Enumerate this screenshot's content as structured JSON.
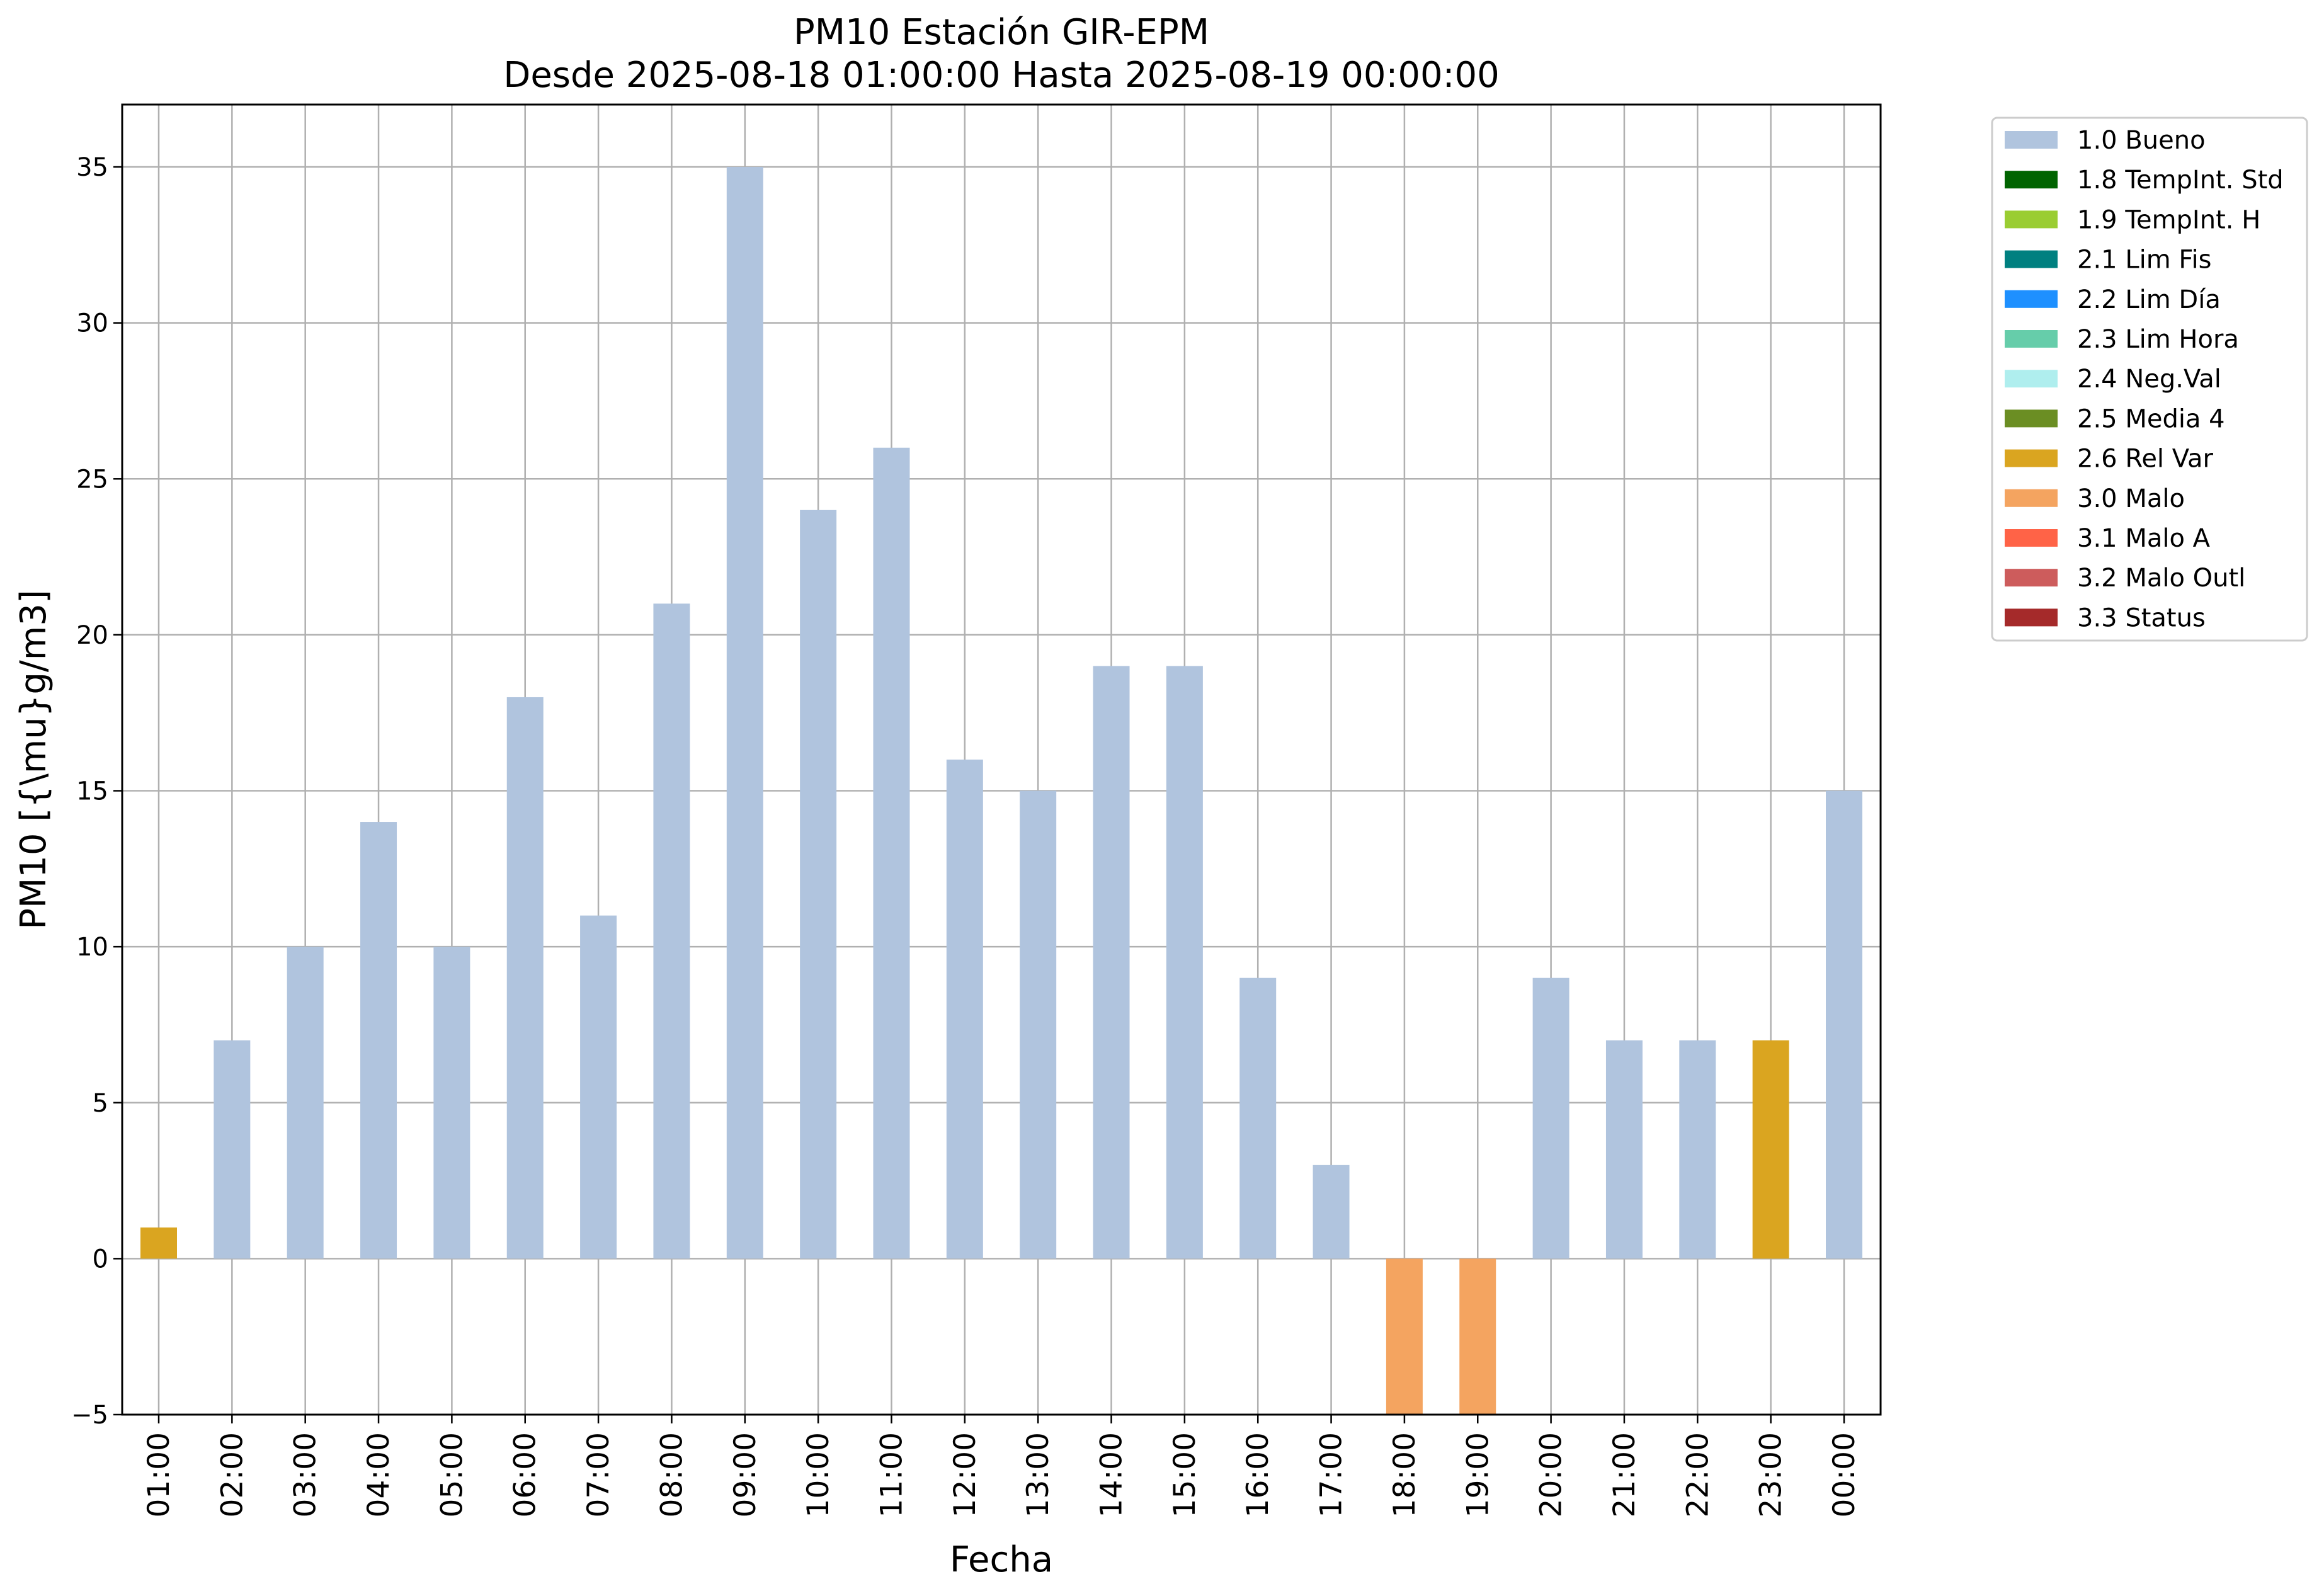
{
  "chart_data": {
    "type": "bar",
    "title": "PM10 Estación GIR-EPM",
    "subtitle": "Desde 2025-08-18 01:00:00 Hasta 2025-08-19 00:00:00",
    "xlabel": "Fecha",
    "ylabel": "PM10 [{\\mu}g/m3]",
    "ylim": [
      -5,
      37
    ],
    "yticks": [
      -5,
      0,
      5,
      10,
      15,
      20,
      25,
      30,
      35
    ],
    "grid": true,
    "legend_position": "outside top-right",
    "categories": [
      "01:00",
      "02:00",
      "03:00",
      "04:00",
      "05:00",
      "06:00",
      "07:00",
      "08:00",
      "09:00",
      "10:00",
      "11:00",
      "12:00",
      "13:00",
      "14:00",
      "15:00",
      "16:00",
      "17:00",
      "18:00",
      "19:00",
      "20:00",
      "21:00",
      "22:00",
      "23:00",
      "00:00"
    ],
    "values": [
      1,
      7,
      10,
      14,
      10,
      18,
      11,
      21,
      35,
      24,
      26,
      16,
      15,
      19,
      19,
      9,
      3,
      -5,
      -5,
      9,
      7,
      7,
      7,
      15
    ],
    "flags": [
      "2.6 Rel Var",
      "1.0 Bueno",
      "1.0 Bueno",
      "1.0 Bueno",
      "1.0 Bueno",
      "1.0 Bueno",
      "1.0 Bueno",
      "1.0 Bueno",
      "1.0 Bueno",
      "1.0 Bueno",
      "1.0 Bueno",
      "1.0 Bueno",
      "1.0 Bueno",
      "1.0 Bueno",
      "1.0 Bueno",
      "1.0 Bueno",
      "1.0 Bueno",
      "3.0 Malo",
      "3.0 Malo",
      "1.0 Bueno",
      "1.0 Bueno",
      "1.0 Bueno",
      "2.6 Rel Var",
      "1.0 Bueno"
    ],
    "legend": [
      {
        "label": "1.0 Bueno",
        "color": "#b0c4de"
      },
      {
        "label": "1.8 TempInt. Std",
        "color": "#006400"
      },
      {
        "label": "1.9 TempInt. H",
        "color": "#9acd32"
      },
      {
        "label": "2.1 Lim Fis",
        "color": "#008080"
      },
      {
        "label": "2.2 Lim Día",
        "color": "#1e90ff"
      },
      {
        "label": "2.3 Lim Hora",
        "color": "#66cdaa"
      },
      {
        "label": "2.4 Neg.Val",
        "color": "#afeeee"
      },
      {
        "label": "2.5 Media 4",
        "color": "#6b8e23"
      },
      {
        "label": "2.6 Rel Var",
        "color": "#daa520"
      },
      {
        "label": "3.0 Malo",
        "color": "#f4a460"
      },
      {
        "label": "3.1 Malo A",
        "color": "#ff6347"
      },
      {
        "label": "3.2 Malo Outl",
        "color": "#cd5c5c"
      },
      {
        "label": "3.3 Status",
        "color": "#a52a2a"
      }
    ]
  }
}
